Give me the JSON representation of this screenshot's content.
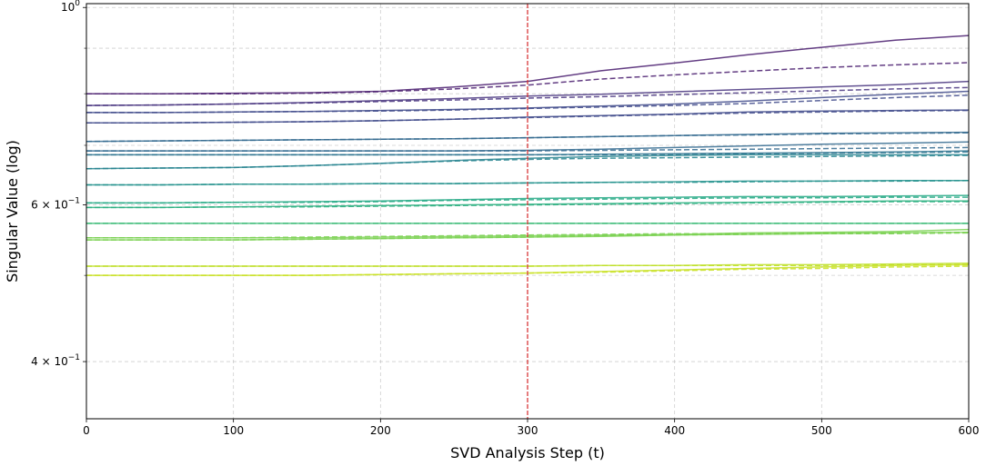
{
  "chart_data": {
    "type": "line",
    "xlabel": "SVD Analysis Step (t)",
    "ylabel": "Singular Value (log)",
    "xlim": [
      0,
      600
    ],
    "ylim": [
      0.345,
      1.01
    ],
    "yscale": "log",
    "grid": true,
    "x_ticks": [
      0,
      100,
      200,
      300,
      400,
      500,
      600
    ],
    "x_tick_labels": [
      "0",
      "100",
      "200",
      "300",
      "400",
      "500",
      "600"
    ],
    "y_ticks_major": [
      1.0,
      0.6,
      0.4
    ],
    "y_tick_labels": [
      {
        "base": "10",
        "exp": "0",
        "coef": ""
      },
      {
        "base": "10",
        "exp": "−1",
        "coef": "6 × "
      },
      {
        "base": "10",
        "exp": "−1",
        "coef": "4 × "
      }
    ],
    "y_ticks_minor": [
      0.9,
      0.8,
      0.7,
      0.5
    ],
    "vline": {
      "x": 300,
      "color": "#d62728",
      "style": "dashed"
    },
    "colormap": "viridis",
    "x": [
      0,
      50,
      100,
      150,
      200,
      250,
      300,
      350,
      400,
      450,
      500,
      550,
      600
    ],
    "series": [
      {
        "color": "#481b6d",
        "style": "solid",
        "values": [
          0.8,
          0.8,
          0.801,
          0.802,
          0.805,
          0.814,
          0.826,
          0.849,
          0.866,
          0.885,
          0.902,
          0.919,
          0.93
        ]
      },
      {
        "color": "#481b6d",
        "style": "dashed",
        "values": [
          0.8,
          0.8,
          0.8,
          0.801,
          0.804,
          0.81,
          0.818,
          0.831,
          0.84,
          0.848,
          0.856,
          0.862,
          0.867
        ]
      },
      {
        "color": "#46327e",
        "style": "solid",
        "values": [
          0.776,
          0.777,
          0.779,
          0.782,
          0.786,
          0.79,
          0.795,
          0.799,
          0.804,
          0.809,
          0.814,
          0.819,
          0.826
        ]
      },
      {
        "color": "#46327e",
        "style": "dashed",
        "values": [
          0.776,
          0.777,
          0.779,
          0.781,
          0.784,
          0.787,
          0.791,
          0.794,
          0.798,
          0.802,
          0.806,
          0.81,
          0.813
        ]
      },
      {
        "color": "#3e4989",
        "style": "solid",
        "values": [
          0.762,
          0.762,
          0.763,
          0.764,
          0.766,
          0.768,
          0.771,
          0.775,
          0.779,
          0.785,
          0.792,
          0.799,
          0.805
        ]
      },
      {
        "color": "#3e4989",
        "style": "dashed",
        "values": [
          0.762,
          0.762,
          0.763,
          0.764,
          0.765,
          0.767,
          0.77,
          0.773,
          0.776,
          0.78,
          0.786,
          0.792,
          0.797
        ]
      },
      {
        "color": "#3e4989",
        "style": "solid",
        "values": [
          0.742,
          0.742,
          0.743,
          0.744,
          0.746,
          0.749,
          0.753,
          0.756,
          0.759,
          0.763,
          0.765,
          0.766,
          0.767
        ]
      },
      {
        "color": "#3e4989",
        "style": "dashed",
        "values": [
          0.742,
          0.742,
          0.743,
          0.744,
          0.746,
          0.749,
          0.752,
          0.755,
          0.758,
          0.761,
          0.763,
          0.765,
          0.766
        ]
      },
      {
        "color": "#31688e",
        "style": "solid",
        "values": [
          0.707,
          0.708,
          0.709,
          0.71,
          0.711,
          0.712,
          0.714,
          0.716,
          0.718,
          0.72,
          0.722,
          0.723,
          0.724
        ]
      },
      {
        "color": "#31688e",
        "style": "dashed",
        "values": [
          0.707,
          0.708,
          0.709,
          0.71,
          0.711,
          0.712,
          0.714,
          0.716,
          0.718,
          0.719,
          0.721,
          0.722,
          0.723
        ]
      },
      {
        "color": "#31688e",
        "style": "solid",
        "values": [
          0.69,
          0.69,
          0.69,
          0.69,
          0.69,
          0.69,
          0.691,
          0.693,
          0.696,
          0.699,
          0.702,
          0.704,
          0.706
        ]
      },
      {
        "color": "#31688e",
        "style": "dashed",
        "values": [
          0.69,
          0.69,
          0.69,
          0.69,
          0.69,
          0.69,
          0.69,
          0.691,
          0.692,
          0.693,
          0.694,
          0.695,
          0.696
        ]
      },
      {
        "color": "#2c728e",
        "style": "solid",
        "values": [
          0.683,
          0.683,
          0.683,
          0.683,
          0.683,
          0.683,
          0.683,
          0.684,
          0.685,
          0.686,
          0.687,
          0.688,
          0.69
        ]
      },
      {
        "color": "#2c728e",
        "style": "dashed",
        "values": [
          0.683,
          0.683,
          0.683,
          0.683,
          0.683,
          0.683,
          0.683,
          0.683,
          0.684,
          0.685,
          0.686,
          0.687,
          0.688
        ]
      },
      {
        "color": "#25838e",
        "style": "solid",
        "values": [
          0.659,
          0.66,
          0.661,
          0.664,
          0.668,
          0.673,
          0.677,
          0.68,
          0.682,
          0.683,
          0.683,
          0.683,
          0.683
        ]
      },
      {
        "color": "#25838e",
        "style": "dashed",
        "values": [
          0.659,
          0.66,
          0.661,
          0.664,
          0.668,
          0.672,
          0.675,
          0.677,
          0.678,
          0.679,
          0.68,
          0.681,
          0.682
        ]
      },
      {
        "color": "#21918c",
        "style": "solid",
        "values": [
          0.632,
          0.632,
          0.633,
          0.633,
          0.634,
          0.634,
          0.635,
          0.636,
          0.637,
          0.638,
          0.638,
          0.639,
          0.639
        ]
      },
      {
        "color": "#21918c",
        "style": "dashed",
        "values": [
          0.632,
          0.632,
          0.633,
          0.633,
          0.634,
          0.634,
          0.635,
          0.636,
          0.636,
          0.637,
          0.638,
          0.638,
          0.639
        ]
      },
      {
        "color": "#22a884",
        "style": "solid",
        "values": [
          0.603,
          0.603,
          0.604,
          0.605,
          0.606,
          0.608,
          0.61,
          0.611,
          0.612,
          0.613,
          0.613,
          0.614,
          0.615
        ]
      },
      {
        "color": "#22a884",
        "style": "dashed",
        "values": [
          0.603,
          0.603,
          0.604,
          0.604,
          0.605,
          0.607,
          0.608,
          0.609,
          0.61,
          0.611,
          0.611,
          0.612,
          0.612
        ]
      },
      {
        "color": "#29af7f",
        "style": "solid",
        "values": [
          0.596,
          0.596,
          0.597,
          0.598,
          0.599,
          0.6,
          0.601,
          0.602,
          0.603,
          0.604,
          0.605,
          0.606,
          0.606
        ]
      },
      {
        "color": "#29af7f",
        "style": "dashed",
        "values": [
          0.596,
          0.596,
          0.597,
          0.597,
          0.598,
          0.599,
          0.6,
          0.601,
          0.602,
          0.603,
          0.604,
          0.605,
          0.605
        ]
      },
      {
        "color": "#3bbb75",
        "style": "solid",
        "values": [
          0.572,
          0.572,
          0.572,
          0.572,
          0.572,
          0.572,
          0.572,
          0.572,
          0.572,
          0.572,
          0.572,
          0.572,
          0.572
        ]
      },
      {
        "color": "#3bbb75",
        "style": "dashed",
        "values": [
          0.572,
          0.572,
          0.572,
          0.572,
          0.572,
          0.572,
          0.572,
          0.572,
          0.572,
          0.572,
          0.572,
          0.572,
          0.572
        ]
      },
      {
        "color": "#7ad151",
        "style": "solid",
        "values": [
          0.551,
          0.551,
          0.551,
          0.551,
          0.552,
          0.553,
          0.554,
          0.555,
          0.556,
          0.558,
          0.559,
          0.56,
          0.563
        ]
      },
      {
        "color": "#7ad151",
        "style": "dashed",
        "values": [
          0.551,
          0.551,
          0.551,
          0.552,
          0.553,
          0.554,
          0.555,
          0.556,
          0.557,
          0.557,
          0.558,
          0.558,
          0.559
        ]
      },
      {
        "color": "#7ad151",
        "style": "solid",
        "values": [
          0.548,
          0.548,
          0.548,
          0.549,
          0.55,
          0.551,
          0.552,
          0.553,
          0.555,
          0.556,
          0.557,
          0.558,
          0.559
        ]
      },
      {
        "color": "#7ad151",
        "style": "dashed",
        "values": [
          0.548,
          0.548,
          0.548,
          0.549,
          0.55,
          0.551,
          0.552,
          0.554,
          0.555,
          0.556,
          0.557,
          0.557,
          0.558
        ]
      },
      {
        "color": "#bddf26",
        "style": "solid",
        "values": [
          0.512,
          0.512,
          0.512,
          0.512,
          0.512,
          0.512,
          0.512,
          0.513,
          0.513,
          0.514,
          0.514,
          0.515,
          0.516
        ]
      },
      {
        "color": "#bddf26",
        "style": "dashed",
        "values": [
          0.512,
          0.512,
          0.512,
          0.512,
          0.512,
          0.512,
          0.512,
          0.513,
          0.513,
          0.513,
          0.513,
          0.514,
          0.514
        ]
      },
      {
        "color": "#c8e020",
        "style": "solid",
        "values": [
          0.5,
          0.5,
          0.5,
          0.5,
          0.501,
          0.502,
          0.503,
          0.505,
          0.507,
          0.509,
          0.511,
          0.513,
          0.514
        ]
      },
      {
        "color": "#c8e020",
        "style": "dashed",
        "values": [
          0.5,
          0.5,
          0.5,
          0.5,
          0.501,
          0.502,
          0.503,
          0.504,
          0.506,
          0.508,
          0.509,
          0.511,
          0.512
        ]
      }
    ]
  }
}
